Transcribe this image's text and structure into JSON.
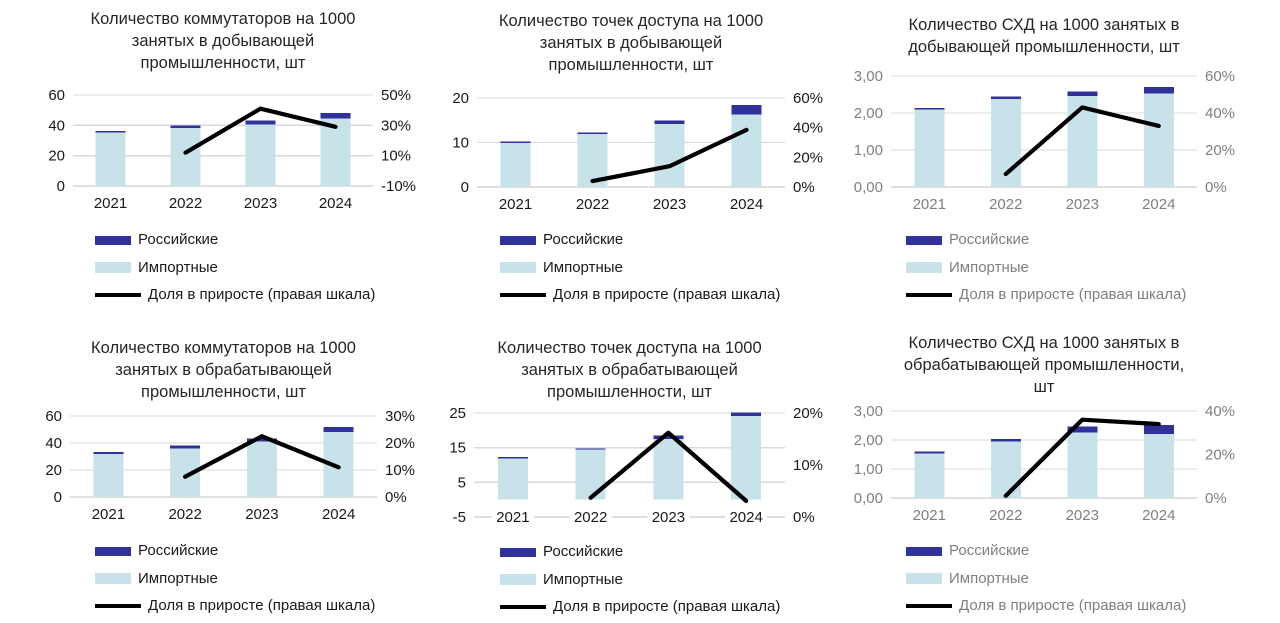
{
  "page": {
    "background": "#FFFFFF"
  },
  "colors": {
    "russian_bar": "#31319C",
    "imported_bar": "#C7E2E8",
    "growth_line": "#000000",
    "gridline": "#D9D9D9",
    "axis_line": "#BFBFBF",
    "text_black": "#1A1A1A",
    "text_gray": "#7F7F7F",
    "title_text": "#262626"
  },
  "chart_data": [
    {
      "type": "bar",
      "combo": "stacked-bar+line-right-axis",
      "title": "Количество коммутаторов на 1000 занятых в добывающей промышленности, шт",
      "title_lines": [
        "Количество коммутаторов на 1000",
        "занятых в добывающей",
        "промышленности, шт"
      ],
      "categories": [
        "2021",
        "2022",
        "2023",
        "2024"
      ],
      "series": [
        {
          "name": "Российские",
          "role": "bar-top",
          "values": [
            1.0,
            1.5,
            2.9,
            3.5
          ]
        },
        {
          "name": "Импортные",
          "role": "bar-bottom",
          "values": [
            35.4,
            38.3,
            40.4,
            44.5
          ]
        },
        {
          "name": "Доля в приросте (правая шкала)",
          "role": "line",
          "axis": "right",
          "values_percent": [
            null,
            12,
            41,
            29
          ]
        }
      ],
      "left_axis": {
        "min": 0,
        "max": 60,
        "ticks": [
          0,
          20,
          40,
          60
        ],
        "tick_labels": [
          "0",
          "20",
          "40",
          "60"
        ]
      },
      "right_axis": {
        "min": -10,
        "max": 50,
        "ticks": [
          -10,
          10,
          30,
          50
        ],
        "tick_labels": [
          "-10%",
          "10%",
          "30%",
          "50%"
        ]
      },
      "bars_base": 0,
      "tick_text_color": "black",
      "grid": true,
      "legend_position": "bottom-left"
    },
    {
      "type": "bar",
      "combo": "stacked-bar+line-right-axis",
      "title": "Количество точек доступа на 1000 занятых в добывающей промышленности, шт",
      "title_lines": [
        "Количество точек доступа на 1000",
        "занятых в добывающей",
        "промышленности, шт"
      ],
      "categories": [
        "2021",
        "2022",
        "2023",
        "2024"
      ],
      "series": [
        {
          "name": "Российские",
          "role": "bar-top",
          "values": [
            0.15,
            0.3,
            0.8,
            2.1
          ]
        },
        {
          "name": "Импортные",
          "role": "bar-bottom",
          "values": [
            9.9,
            11.9,
            14.2,
            16.3
          ]
        },
        {
          "name": "Доля в приросте (правая шкала)",
          "role": "line",
          "axis": "right",
          "values_percent": [
            null,
            4,
            14,
            38.5
          ]
        }
      ],
      "left_axis": {
        "min": 0,
        "max": 20,
        "ticks": [
          0,
          10,
          20
        ],
        "tick_labels": [
          "0",
          "10",
          "20"
        ]
      },
      "right_axis": {
        "min": 0,
        "max": 60,
        "ticks": [
          0,
          20,
          40,
          60
        ],
        "tick_labels": [
          "0%",
          "20%",
          "40%",
          "60%"
        ]
      },
      "bars_base": 0,
      "tick_text_color": "black",
      "grid": true,
      "legend_position": "bottom-left"
    },
    {
      "type": "bar",
      "combo": "stacked-bar+line-right-axis",
      "title": "Количество СХД на 1000 занятых в добывающей промышленности, шт",
      "title_lines": [
        "Количество СХД на 1000 занятых в",
        "добывающей промышленности, шт"
      ],
      "categories": [
        "2021",
        "2022",
        "2023",
        "2024"
      ],
      "series": [
        {
          "name": "Российские",
          "role": "bar-top",
          "values": [
            0.03,
            0.06,
            0.12,
            0.17
          ]
        },
        {
          "name": "Импортные",
          "role": "bar-bottom",
          "values": [
            2.1,
            2.38,
            2.46,
            2.53
          ]
        },
        {
          "name": "Доля в приросте (правая шкала)",
          "role": "line",
          "axis": "right",
          "values_percent": [
            null,
            7,
            43,
            33
          ]
        }
      ],
      "left_axis": {
        "min": 0,
        "max": 3,
        "ticks": [
          0,
          1,
          2,
          3
        ],
        "tick_labels": [
          "0,00",
          "1,00",
          "2,00",
          "3,00"
        ]
      },
      "right_axis": {
        "min": 0,
        "max": 60,
        "ticks": [
          0,
          20,
          40,
          60
        ],
        "tick_labels": [
          "0%",
          "20%",
          "40%",
          "60%"
        ]
      },
      "bars_base": 0,
      "tick_text_color": "gray",
      "grid": true,
      "legend_position": "bottom-left"
    },
    {
      "type": "bar",
      "combo": "stacked-bar+line-right-axis",
      "title": "Количество коммутаторов на 1000 занятых в обрабатывающей промышленности, шт",
      "title_lines": [
        "Количество коммутаторов на 1000",
        "занятых в обрабатывающей",
        "промышленности, шт"
      ],
      "categories": [
        "2021",
        "2022",
        "2023",
        "2024"
      ],
      "series": [
        {
          "name": "Российские",
          "role": "bar-top",
          "values": [
            1.5,
            2.0,
            2.5,
            4.0
          ]
        },
        {
          "name": "Импортные",
          "role": "bar-bottom",
          "values": [
            32,
            36,
            41,
            48
          ]
        },
        {
          "name": "Доля в приросте (правая шкала)",
          "role": "line",
          "axis": "right",
          "values_percent": [
            null,
            7.5,
            22.5,
            11
          ]
        }
      ],
      "left_axis": {
        "min": 0,
        "max": 60,
        "ticks": [
          0,
          20,
          40,
          60
        ],
        "tick_labels": [
          "0",
          "20",
          "40",
          "60"
        ]
      },
      "right_axis": {
        "min": 0,
        "max": 30,
        "ticks": [
          0,
          10,
          20,
          30
        ],
        "tick_labels": [
          "0%",
          "10%",
          "20%",
          "30%"
        ]
      },
      "bars_base": 0,
      "tick_text_color": "black",
      "grid": true,
      "legend_position": "bottom-left"
    },
    {
      "type": "bar",
      "combo": "stacked-bar+line-right-axis",
      "title": "Количество точек доступа на 1000 занятых в обрабатывающей промышленности, шт",
      "title_lines": [
        "Количество точек доступа на 1000",
        "занятых в обрабатывающей",
        "промышленности, шт"
      ],
      "categories": [
        "2021",
        "2022",
        "2023",
        "2024"
      ],
      "series": [
        {
          "name": "Российские",
          "role": "bar-top",
          "values": [
            0.4,
            0.4,
            1.0,
            1.0
          ]
        },
        {
          "name": "Импортные",
          "role": "bar-bottom",
          "values": [
            11.9,
            14.4,
            17.5,
            24.2
          ]
        },
        {
          "name": "Доля в приросте (правая шкала)",
          "role": "line",
          "axis": "right",
          "values_percent": [
            null,
            3.7,
            16.2,
            3.1
          ]
        }
      ],
      "left_axis": {
        "min": -5,
        "max": 25,
        "ticks": [
          -5,
          5,
          15,
          25
        ],
        "tick_labels": [
          "-5",
          "5",
          "15",
          "25"
        ]
      },
      "right_axis": {
        "min": 0,
        "max": 20,
        "ticks": [
          0,
          10,
          20
        ],
        "tick_labels": [
          "0%",
          "10%",
          "20%"
        ]
      },
      "bars_base": 0,
      "tick_text_color": "black",
      "grid": true,
      "legend_position": "bottom-left"
    },
    {
      "type": "bar",
      "combo": "stacked-bar+line-right-axis",
      "title": "Количество СХД на 1000 занятых в обрабатывающей промышленности, шт",
      "title_lines": [
        "Количество СХД на 1000 занятых в",
        "обрабатывающей промышленности,",
        "шт"
      ],
      "categories": [
        "2021",
        "2022",
        "2023",
        "2024"
      ],
      "series": [
        {
          "name": "Российские",
          "role": "bar-top",
          "values": [
            0.06,
            0.08,
            0.2,
            0.3
          ]
        },
        {
          "name": "Импортные",
          "role": "bar-bottom",
          "values": [
            1.54,
            1.95,
            2.26,
            2.21
          ]
        },
        {
          "name": "Доля в приросте (правая шкала)",
          "role": "line",
          "axis": "right",
          "values_percent": [
            null,
            1,
            36,
            34
          ]
        }
      ],
      "left_axis": {
        "min": 0,
        "max": 3,
        "ticks": [
          0,
          1,
          2,
          3
        ],
        "tick_labels": [
          "0,00",
          "1,00",
          "2,00",
          "3,00"
        ]
      },
      "right_axis": {
        "min": 0,
        "max": 40,
        "ticks": [
          0,
          20,
          40
        ],
        "tick_labels": [
          "0%",
          "20%",
          "40%"
        ]
      },
      "bars_base": 0,
      "tick_text_color": "gray",
      "grid": true,
      "legend_position": "bottom-left"
    }
  ]
}
